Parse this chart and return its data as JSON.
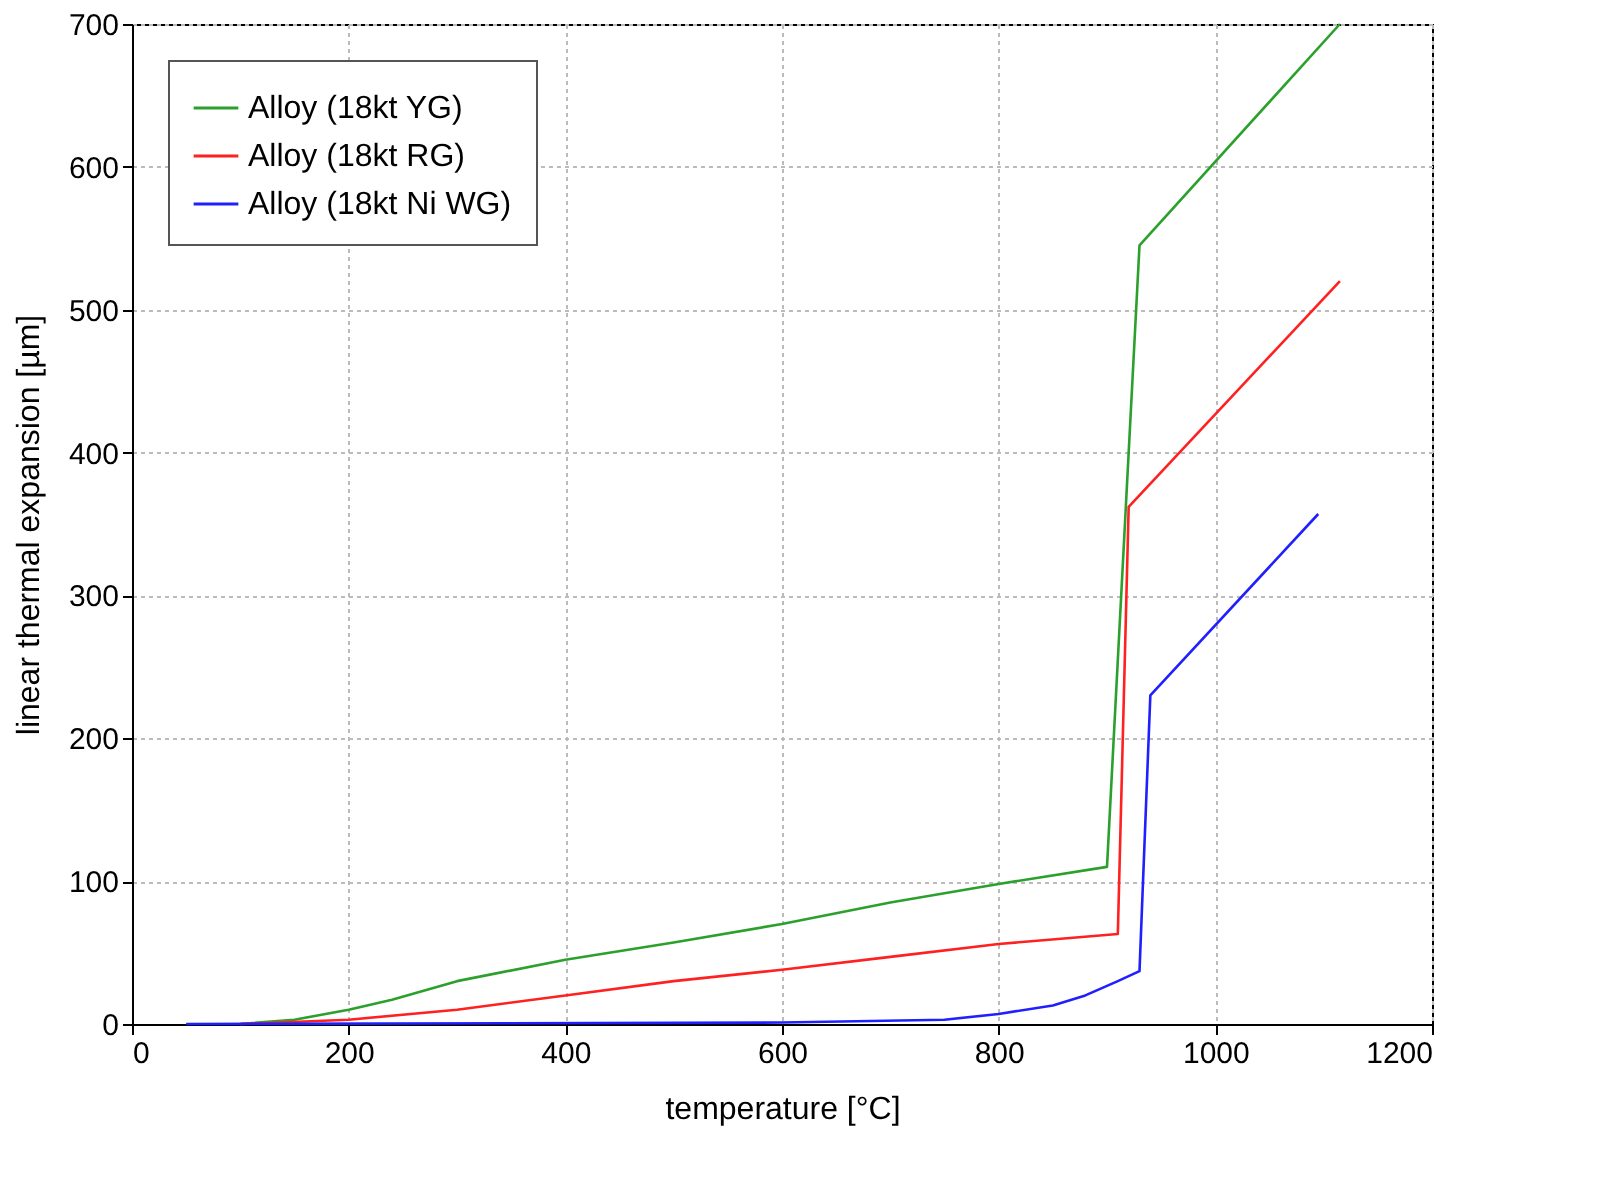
{
  "chart_data": {
    "type": "line",
    "xlabel": "temperature [°C]",
    "ylabel": "linear thermal expansion [µm]",
    "xlim": [
      0,
      1200
    ],
    "xticks": [
      0,
      200,
      400,
      600,
      800,
      1000,
      1200
    ],
    "ylim": [
      0,
      700
    ],
    "yticks": [
      0,
      100,
      200,
      300,
      400,
      500,
      600,
      700
    ],
    "grid": true,
    "legend": "top left",
    "marker": "none",
    "line_style": "solid",
    "series": [
      {
        "name": "Alloy (18kt YG)",
        "color": "#2ca02c",
        "x": [
          100,
          150,
          200,
          240,
          300,
          400,
          500,
          600,
          700,
          800,
          900,
          930,
          1115
        ],
        "values": [
          0,
          3,
          10,
          17,
          30,
          45,
          57,
          70,
          85,
          98,
          110,
          545,
          700
        ]
      },
      {
        "name": "Alloy (18kt RG)",
        "color": "#ff2020",
        "x": [
          100,
          200,
          300,
          400,
          500,
          600,
          700,
          800,
          910,
          920,
          1115
        ],
        "values": [
          0,
          3,
          10,
          20,
          30,
          38,
          47,
          56,
          63,
          362,
          520
        ]
      },
      {
        "name": "Alloy (18kt Ni WG)",
        "color": "#2020ff",
        "x": [
          50,
          600,
          750,
          800,
          850,
          880,
          910,
          930,
          940,
          1095
        ],
        "values": [
          0,
          1,
          3,
          7,
          13,
          20,
          30,
          37,
          230,
          357
        ]
      }
    ]
  }
}
